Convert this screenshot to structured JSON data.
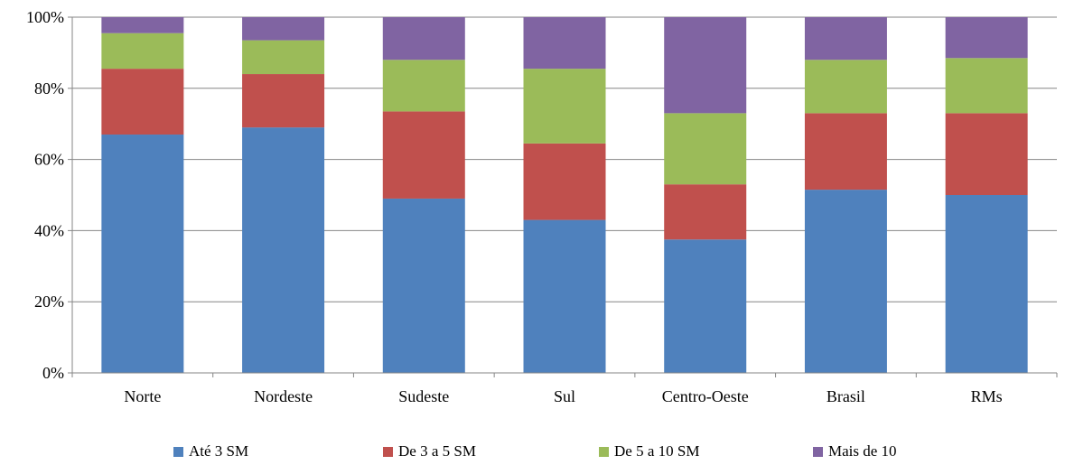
{
  "chart_data": {
    "type": "bar",
    "stacked": true,
    "percent": true,
    "categories": [
      "Norte",
      "Nordeste",
      "Sudeste",
      "Sul",
      "Centro-Oeste",
      "Brasil",
      "RMs"
    ],
    "series": [
      {
        "name": "Até 3 SM",
        "color": "#4F81BD",
        "values": [
          67,
          69,
          49,
          43,
          37.5,
          51.5,
          50
        ]
      },
      {
        "name": "De 3 a 5 SM",
        "color": "#C0504D",
        "values": [
          18.5,
          15,
          24.5,
          21.5,
          15.5,
          21.5,
          23
        ]
      },
      {
        "name": "De 5 a 10 SM",
        "color": "#9BBB59",
        "values": [
          10,
          9.5,
          14.5,
          21,
          20,
          15,
          15.5
        ]
      },
      {
        "name": "Mais de 10",
        "color": "#8064A2",
        "values": [
          4.5,
          6.5,
          12,
          14.5,
          27,
          12,
          11.5
        ]
      }
    ],
    "ylim": [
      0,
      100
    ],
    "yticks": [
      "0%",
      "20%",
      "40%",
      "60%",
      "80%",
      "100%"
    ],
    "grid": true,
    "legend_position": "bottom"
  }
}
